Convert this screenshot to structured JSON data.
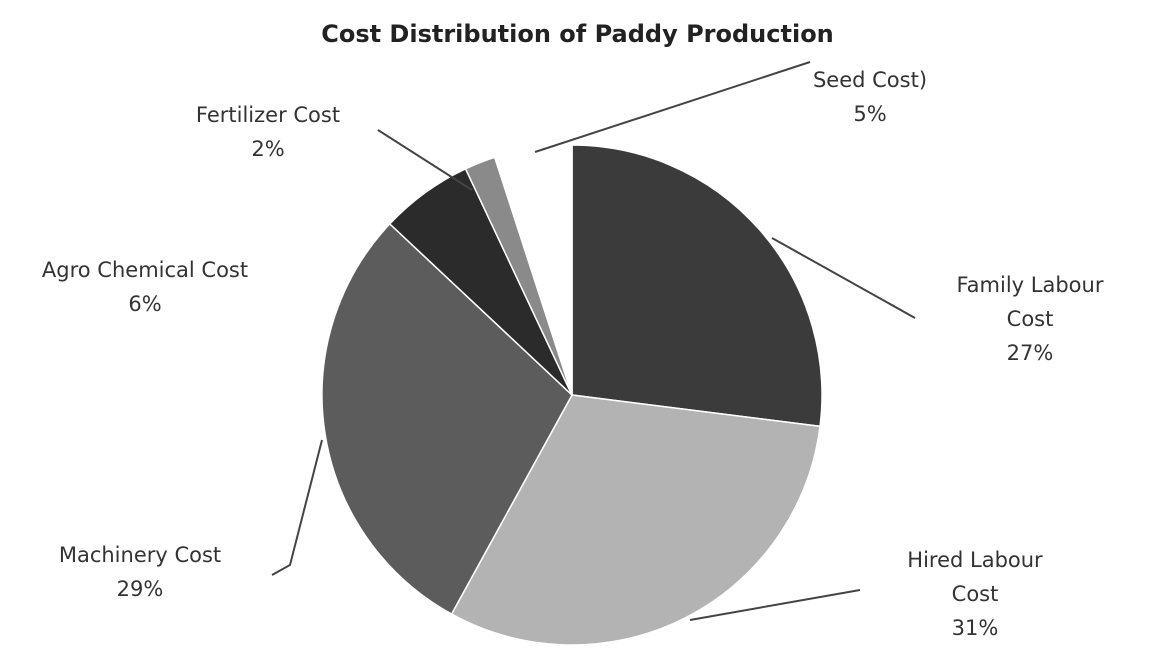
{
  "chart_data": {
    "type": "pie",
    "title": "Cost Distribution of Paddy Production",
    "categories": [
      "Family Labour Cost",
      "Hired Labour Cost",
      "Machinery Cost",
      "Agro Chemical Cost",
      "Fertilizer Cost",
      "Seed Cost)"
    ],
    "values": [
      27,
      31,
      29,
      6,
      2,
      5
    ],
    "value_labels": [
      "27%",
      "31%",
      "29%",
      "6%",
      "2%",
      "5%"
    ],
    "colors": [
      "#3b3b3b",
      "#b3b3b3",
      "#5c5c5c",
      "#2b2b2b",
      "#8a8a8a",
      "#ffffff"
    ]
  }
}
